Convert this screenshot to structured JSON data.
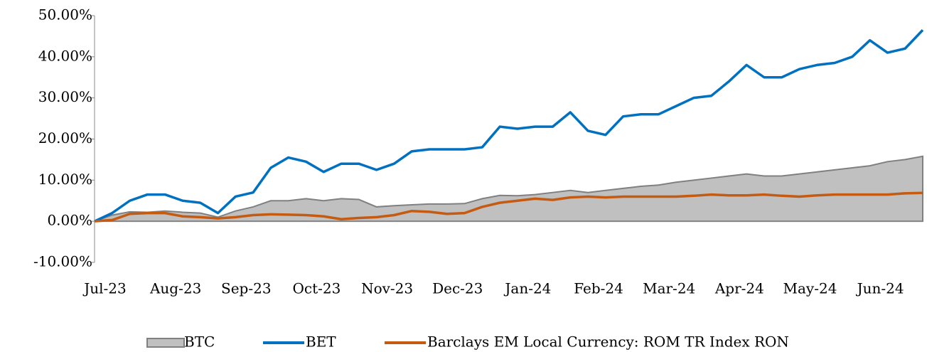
{
  "chart_data": {
    "type": "line",
    "categories": [
      "Jul-23",
      null,
      null,
      null,
      "Aug-23",
      null,
      null,
      null,
      "Sep-23",
      null,
      null,
      null,
      "Oct-23",
      null,
      null,
      null,
      "Nov-23",
      null,
      null,
      null,
      "Dec-23",
      null,
      null,
      null,
      "Jan-24",
      null,
      null,
      null,
      "Feb-24",
      null,
      null,
      null,
      "Mar-24",
      null,
      null,
      null,
      "Apr-24",
      null,
      null,
      null,
      "May-24",
      null,
      null,
      null,
      "Jun-24",
      null,
      null,
      null
    ],
    "series": [
      {
        "name": "BTC",
        "kind": "area",
        "color": "#c0c0c0",
        "line_color": "#808080",
        "values": [
          0,
          1.5,
          2.3,
          2.2,
          2.5,
          2.2,
          2,
          1,
          2.5,
          3.5,
          5,
          5,
          5.5,
          5,
          5.5,
          5.3,
          3.5,
          3.8,
          4,
          4.2,
          4.2,
          4.3,
          5.5,
          6.3,
          6.2,
          6.5,
          7,
          7.5,
          7,
          7.5,
          8,
          8.5,
          8.8,
          9.5,
          10,
          10.5,
          11,
          11.5,
          11,
          11,
          11.5,
          12,
          12.5,
          13,
          13.5,
          14.5,
          15,
          15.8
        ]
      },
      {
        "name": "BET",
        "kind": "line",
        "color": "#0070c0",
        "values": [
          0,
          2,
          5,
          6.5,
          6.5,
          5,
          4.5,
          2,
          6,
          7,
          13,
          15.5,
          14.5,
          12,
          14,
          14,
          12.5,
          14,
          17,
          17.5,
          17.5,
          17.5,
          18,
          23,
          22.5,
          23,
          23,
          26.5,
          22,
          21,
          25.5,
          26,
          26,
          28,
          30,
          30.5,
          34,
          38,
          35,
          35,
          37,
          38,
          38.5,
          40,
          44,
          41,
          42,
          46.5
        ]
      },
      {
        "name": "Barclays EM Local Currency: ROM TR Index RON",
        "kind": "line",
        "color": "#c55a11",
        "values": [
          0,
          0.3,
          1.8,
          2,
          2,
          1.2,
          1,
          0.7,
          1,
          1.5,
          1.7,
          1.6,
          1.5,
          1.2,
          0.5,
          0.8,
          1,
          1.5,
          2.5,
          2.3,
          1.8,
          2,
          3.5,
          4.5,
          5,
          5.5,
          5.2,
          5.8,
          6,
          5.8,
          6,
          6,
          6,
          6,
          6.2,
          6.5,
          6.3,
          6.3,
          6.5,
          6.2,
          6,
          6.3,
          6.5,
          6.5,
          6.5,
          6.5,
          6.8,
          6.9
        ]
      }
    ],
    "ylim": [
      -10,
      50
    ],
    "yticks": [
      {
        "value": -10,
        "label": "-10.00%"
      },
      {
        "value": 0,
        "label": "0.00%"
      },
      {
        "value": 10,
        "label": "10.00%"
      },
      {
        "value": 20,
        "label": "20.00%"
      },
      {
        "value": 30,
        "label": "30.00%"
      },
      {
        "value": 40,
        "label": "40.00%"
      },
      {
        "value": 50,
        "label": "50.00%"
      }
    ],
    "negative_tick_color": "#ff0000",
    "grid": false,
    "legend": "bottom"
  }
}
